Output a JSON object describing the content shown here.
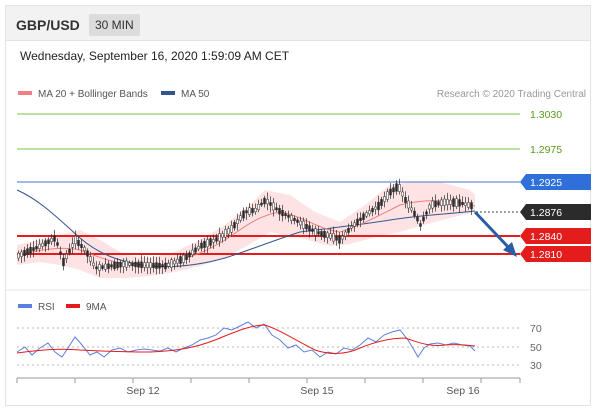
{
  "header": {
    "symbol": "GBP/USD",
    "timeframe": "30 MIN"
  },
  "timestamp": "Wednesday, September 16, 2020 1:59:09 AM CET",
  "legend": {
    "ma20_bb": "MA 20 + Bollinger Bands",
    "ma50": "MA 50",
    "credit": "Research © 2020 Trading Central",
    "rsi": "RSI",
    "rsi_ma": "9MA"
  },
  "levels": {
    "r2": "1.3030",
    "r1": "1.2975",
    "pivot": "1.2925",
    "last": "1.2876",
    "s1": "1.2840",
    "s2": "1.2810"
  },
  "rsi_ticks": [
    "70",
    "50",
    "30"
  ],
  "x_ticks": [
    "Sep 12",
    "Sep 15",
    "Sep 16"
  ],
  "colors": {
    "green": "#7dc242",
    "blue_line": "#6a8fd9",
    "badge_blue": "#2f6fd9",
    "red": "#e41c1c",
    "last_bg": "#2b2b2b",
    "ma20": "#f08080",
    "ma50": "#33568c",
    "bb_fill": "#fde3e3",
    "rsi_line": "#5b7fdc",
    "rsi_ma_line": "#e41c1c",
    "arrow": "#2a5ca8"
  }
}
